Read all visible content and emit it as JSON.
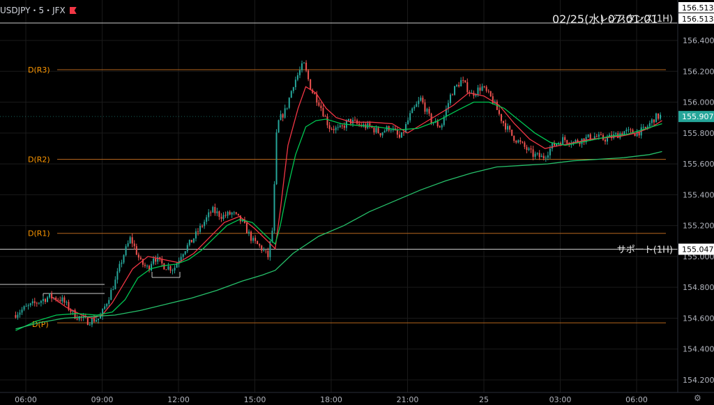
{
  "header": {
    "symbol": "USDJPY・5・JFX",
    "timestamp": "02/25(水) 07:01:01"
  },
  "colors": {
    "background": "#000000",
    "grid": "#1a1a1a",
    "candle_up": "#26a69a",
    "candle_down": "#ef5350",
    "ma_fast": "#f23645",
    "ma_mid": "#00c853",
    "ma_slow": "#26c06a",
    "pivot_line": "#b5651d",
    "pivot_label": "#ff9800",
    "sr_line": "#cccccc",
    "price_tag": "#ffffff"
  },
  "chart_data": {
    "type": "line",
    "title": "",
    "xlabel": "",
    "ylabel": "",
    "ylim": [
      154.13,
      156.56
    ],
    "x_ticks": [
      "06:00",
      "09:00",
      "12:00",
      "15:00",
      "18:00",
      "21:00",
      "25",
      "03:00",
      "06:00"
    ],
    "y_ticks": [
      "156.400",
      "156.200",
      "156.000",
      "155.800",
      "155.600",
      "155.400",
      "155.200",
      "155.000",
      "154.800",
      "154.600",
      "154.400",
      "154.200"
    ],
    "last_price": "155.907",
    "resistance": {
      "label": "レジスタンス(1H)",
      "value": 156.513,
      "tags": [
        "156.513",
        "156.513"
      ]
    },
    "support": {
      "label": "サポート(1H)",
      "value": 155.047,
      "tag": "155.047"
    },
    "pivots": [
      {
        "name": "D(R3)",
        "value": 156.21
      },
      {
        "name": "D(R2)",
        "value": 155.63
      },
      {
        "name": "D(R1)",
        "value": 155.15
      },
      {
        "name": "D(P)",
        "value": 154.57
      }
    ],
    "series": [
      {
        "key": "price",
        "x": [
          5.6,
          6.0,
          6.5,
          7.0,
          7.5,
          8.0,
          8.5,
          9.0,
          9.3,
          9.6,
          9.9,
          10.2,
          10.6,
          10.9,
          11.1,
          11.5,
          11.9,
          12.2,
          12.6,
          13.0,
          13.4,
          13.8,
          14.2,
          14.6,
          15.0,
          15.3,
          15.6,
          15.8,
          15.85,
          15.95,
          16.1,
          16.3,
          16.6,
          17.0,
          17.3,
          17.6,
          17.8,
          18.0,
          18.4,
          18.8,
          19.2,
          19.6,
          20.0,
          20.4,
          20.8,
          21.2,
          21.6,
          22.0,
          22.4,
          22.8,
          23.2,
          23.6,
          24.0,
          24.4,
          24.8,
          25.2,
          25.6,
          26.0,
          26.4,
          26.8,
          27.2,
          27.6,
          28.0,
          28.4,
          28.8,
          29.2,
          29.6,
          30.0,
          30.4,
          30.8,
          31.0
        ],
        "values": [
          154.62,
          154.66,
          154.7,
          154.74,
          154.72,
          154.62,
          154.58,
          154.6,
          154.72,
          154.84,
          155.0,
          155.12,
          154.96,
          154.92,
          155.0,
          154.94,
          154.92,
          155.02,
          155.1,
          155.2,
          155.3,
          155.26,
          155.28,
          155.22,
          155.1,
          155.06,
          155.0,
          155.2,
          155.45,
          155.85,
          155.9,
          155.95,
          156.12,
          156.25,
          156.08,
          156.0,
          155.92,
          155.84,
          155.82,
          155.88,
          155.85,
          155.84,
          155.8,
          155.84,
          155.76,
          155.92,
          156.02,
          155.88,
          155.84,
          156.06,
          156.14,
          156.05,
          156.1,
          156.02,
          155.88,
          155.78,
          155.72,
          155.66,
          155.64,
          155.72,
          155.76,
          155.74,
          155.76,
          155.78,
          155.76,
          155.78,
          155.81,
          155.8,
          155.82,
          155.9,
          155.91
        ]
      },
      {
        "key": "ma_fast",
        "x": [
          7.0,
          7.6,
          8.2,
          8.6,
          9.0,
          9.4,
          10.2,
          10.8,
          11.4,
          12.0,
          12.6,
          13.2,
          13.8,
          14.4,
          15.0,
          15.5,
          15.8,
          16.0,
          16.3,
          16.7,
          17.0,
          17.4,
          17.8,
          18.2,
          18.8,
          19.6,
          20.4,
          21.0,
          21.6,
          22.2,
          22.8,
          23.4,
          24.0,
          24.6,
          25.2,
          25.8,
          26.4,
          27.0,
          27.6,
          28.2,
          28.8,
          29.4,
          30.0,
          30.6,
          31.0
        ],
        "values": [
          154.74,
          154.67,
          154.62,
          154.6,
          154.62,
          154.7,
          154.92,
          155.0,
          154.98,
          154.96,
          155.02,
          155.12,
          155.22,
          155.26,
          155.18,
          155.1,
          155.05,
          155.3,
          155.72,
          155.96,
          156.1,
          156.06,
          155.96,
          155.9,
          155.87,
          155.87,
          155.86,
          155.8,
          155.86,
          155.92,
          155.98,
          156.06,
          156.04,
          155.98,
          155.86,
          155.76,
          155.7,
          155.72,
          155.74,
          155.76,
          155.77,
          155.78,
          155.8,
          155.84,
          155.88
        ]
      },
      {
        "key": "ma_mid",
        "x": [
          5.6,
          6.4,
          7.2,
          8.0,
          8.8,
          9.4,
          9.9,
          10.4,
          10.9,
          11.4,
          11.9,
          12.4,
          12.9,
          13.4,
          13.9,
          14.4,
          14.9,
          15.4,
          15.8,
          16.0,
          16.3,
          16.6,
          17.0,
          17.4,
          17.8,
          18.4,
          19.0,
          19.8,
          20.6,
          21.4,
          22.2,
          23.0,
          23.6,
          24.2,
          24.8,
          25.4,
          26.0,
          26.6,
          27.2,
          27.8,
          28.4,
          29.0,
          29.6,
          30.2,
          31.0
        ],
        "values": [
          154.52,
          154.58,
          154.62,
          154.63,
          154.62,
          154.64,
          154.72,
          154.86,
          154.92,
          154.94,
          154.95,
          154.98,
          155.04,
          155.12,
          155.2,
          155.24,
          155.22,
          155.14,
          155.08,
          155.2,
          155.45,
          155.66,
          155.84,
          155.88,
          155.89,
          155.86,
          155.85,
          155.84,
          155.82,
          155.83,
          155.88,
          155.95,
          156.0,
          156.0,
          155.96,
          155.88,
          155.8,
          155.74,
          155.72,
          155.74,
          155.76,
          155.78,
          155.79,
          155.82,
          155.86
        ]
      },
      {
        "key": "ma_slow",
        "x": [
          5.6,
          6.5,
          7.5,
          8.5,
          9.5,
          10.5,
          11.5,
          12.5,
          13.5,
          14.5,
          15.3,
          15.8,
          16.5,
          17.5,
          18.5,
          19.5,
          20.5,
          21.5,
          22.5,
          23.5,
          24.5,
          25.5,
          26.5,
          27.5,
          28.5,
          29.5,
          30.5,
          31.0
        ],
        "values": [
          154.53,
          154.57,
          154.6,
          154.61,
          154.62,
          154.65,
          154.69,
          154.73,
          154.78,
          154.84,
          154.88,
          154.91,
          155.02,
          155.13,
          155.2,
          155.29,
          155.36,
          155.43,
          155.49,
          155.54,
          155.58,
          155.59,
          155.6,
          155.62,
          155.63,
          155.64,
          155.66,
          155.68
        ]
      }
    ]
  }
}
